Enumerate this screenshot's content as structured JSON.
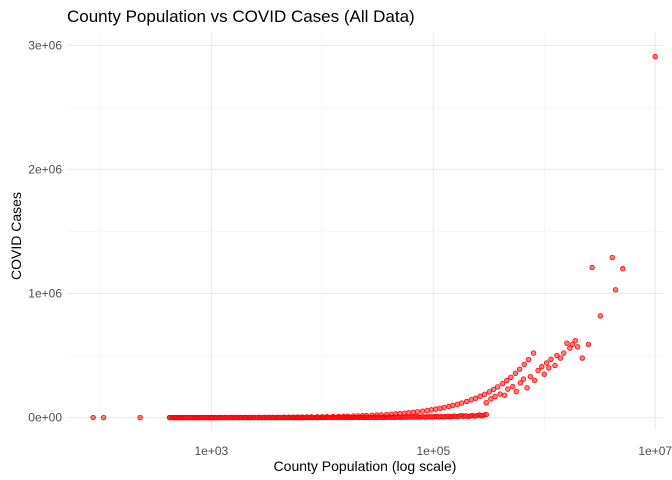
{
  "chart_data": {
    "type": "scatter",
    "title": "County Population vs COVID Cases (All Data)",
    "xlabel": "County Population (log scale)",
    "ylabel": "COVID Cases",
    "x_scale": "log10",
    "xlim": [
      50,
      12000000
    ],
    "ylim": [
      -100000,
      3100000
    ],
    "x_ticks": [
      1000,
      100000,
      10000000
    ],
    "x_tick_labels": [
      "1e+03",
      "1e+05",
      "1e+07"
    ],
    "y_ticks": [
      0,
      1000000,
      2000000,
      3000000
    ],
    "y_tick_labels": [
      "0e+00",
      "1e+06",
      "2e+06",
      "3e+06"
    ],
    "grid": true,
    "point_color": "#ff0000",
    "point_fill_opacity": 0.5,
    "series": [
      {
        "points": [
          [
            86,
            100
          ],
          [
            107,
            100
          ],
          [
            228,
            300
          ],
          [
            420,
            200
          ],
          [
            470,
            150
          ],
          [
            520,
            200
          ],
          [
            560,
            300
          ],
          [
            610,
            250
          ],
          [
            660,
            300
          ],
          [
            720,
            350
          ],
          [
            780,
            400
          ],
          [
            850,
            400
          ],
          [
            930,
            500
          ],
          [
            1000,
            500
          ],
          [
            1100,
            600
          ],
          [
            1200,
            700
          ],
          [
            1350,
            800
          ],
          [
            1500,
            900
          ],
          [
            1650,
            1000
          ],
          [
            1800,
            1100
          ],
          [
            2000,
            1200
          ],
          [
            2200,
            1400
          ],
          [
            2400,
            1500
          ],
          [
            2700,
            1700
          ],
          [
            3000,
            1900
          ],
          [
            3300,
            2100
          ],
          [
            3600,
            2300
          ],
          [
            4000,
            2600
          ],
          [
            4500,
            2900
          ],
          [
            5000,
            3200
          ],
          [
            5500,
            3600
          ],
          [
            6000,
            3900
          ],
          [
            6600,
            4300
          ],
          [
            7300,
            4800
          ],
          [
            8000,
            5200
          ],
          [
            9000,
            5900
          ],
          [
            10000,
            6500
          ],
          [
            11000,
            7200
          ],
          [
            12500,
            8100
          ],
          [
            14000,
            9100
          ],
          [
            15500,
            10000
          ],
          [
            17000,
            11000
          ],
          [
            19000,
            12300
          ],
          [
            21000,
            13600
          ],
          [
            23000,
            15000
          ],
          [
            25000,
            16300
          ],
          [
            28000,
            18200
          ],
          [
            31000,
            20200
          ],
          [
            34000,
            22100
          ],
          [
            38000,
            24700
          ],
          [
            42000,
            27300
          ],
          [
            46000,
            30000
          ],
          [
            50000,
            32500
          ],
          [
            55000,
            35800
          ],
          [
            60000,
            39000
          ],
          [
            66000,
            42900
          ],
          [
            72000,
            46800
          ],
          [
            80000,
            52000
          ],
          [
            88000,
            57200
          ],
          [
            96000,
            62400
          ],
          [
            105000,
            68300
          ],
          [
            115000,
            74800
          ],
          [
            125000,
            81300
          ],
          [
            138000,
            89700
          ],
          [
            150000,
            97500
          ],
          [
            165000,
            107000
          ],
          [
            180000,
            117000
          ],
          [
            200000,
            130000
          ],
          [
            220000,
            143000
          ],
          [
            240000,
            156000
          ],
          [
            265000,
            172000
          ],
          [
            290000,
            188000
          ],
          [
            320000,
            208000
          ],
          [
            350000,
            228000
          ],
          [
            380000,
            247000
          ],
          [
            420000,
            273000
          ],
          [
            460000,
            299000
          ],
          [
            500000,
            325000
          ],
          [
            550000,
            357000
          ],
          [
            600000,
            390000
          ],
          [
            660000,
            429000
          ],
          [
            720000,
            468000
          ],
          [
            800000,
            520000
          ],
          [
            300000,
            120000
          ],
          [
            330000,
            150000
          ],
          [
            360000,
            170000
          ],
          [
            400000,
            190000
          ],
          [
            440000,
            180000
          ],
          [
            470000,
            230000
          ],
          [
            520000,
            250000
          ],
          [
            560000,
            210000
          ],
          [
            610000,
            280000
          ],
          [
            650000,
            310000
          ],
          [
            700000,
            240000
          ],
          [
            750000,
            330000
          ],
          [
            820000,
            300000
          ],
          [
            880000,
            380000
          ],
          [
            950000,
            410000
          ],
          [
            1000000,
            350000
          ],
          [
            1050000,
            440000
          ],
          [
            1100000,
            400000
          ],
          [
            1150000,
            470000
          ],
          [
            1250000,
            420000
          ],
          [
            1300000,
            500000
          ],
          [
            1400000,
            480000
          ],
          [
            1500000,
            520000
          ],
          [
            1600000,
            600000
          ],
          [
            1700000,
            560000
          ],
          [
            1800000,
            590000
          ],
          [
            1900000,
            620000
          ],
          [
            2000000,
            570000
          ],
          [
            2200000,
            480000
          ],
          [
            2500000,
            590000
          ],
          [
            2700000,
            1210000
          ],
          [
            3200000,
            820000
          ],
          [
            4100000,
            1290000
          ],
          [
            4400000,
            1030000
          ],
          [
            5100000,
            1200000
          ],
          [
            10000000,
            2910000
          ]
        ]
      }
    ]
  }
}
